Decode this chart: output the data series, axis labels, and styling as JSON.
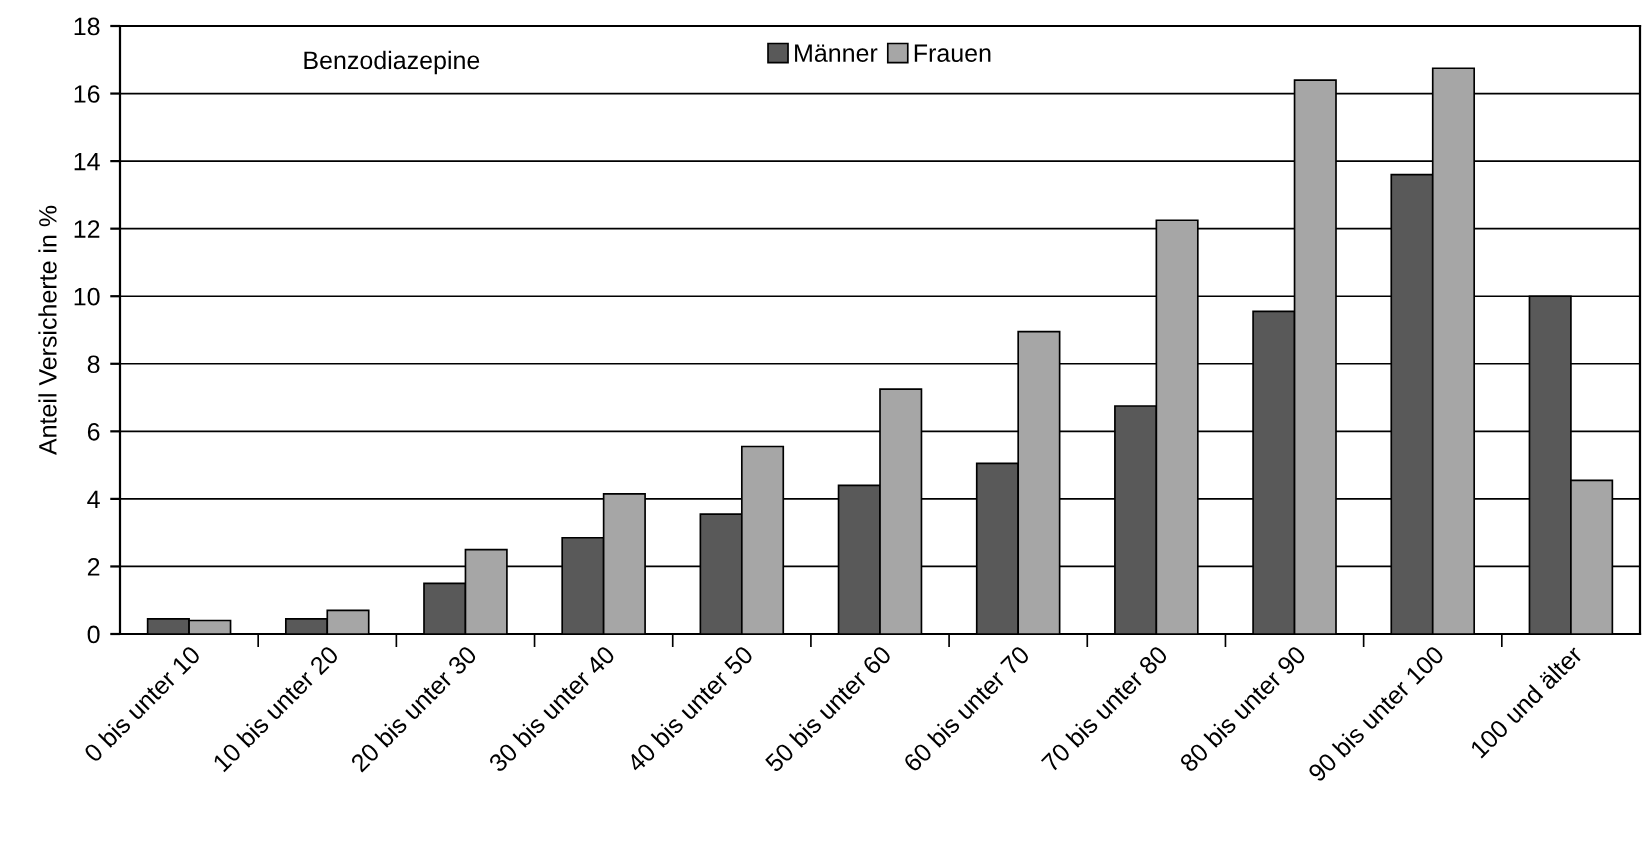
{
  "chart_data": {
    "type": "bar",
    "title": "Benzodiazepine",
    "ylabel": "Anteil Versicherte in %",
    "categories": [
      "0 bis unter 10",
      "10 bis unter 20",
      "20 bis unter 30",
      "30 bis unter 40",
      "40 bis unter 50",
      "50 bis unter 60",
      "60 bis unter 70",
      "70 bis unter 80",
      "80 bis unter 90",
      "90 bis unter 100",
      "100 und älter"
    ],
    "series": [
      {
        "name": "Männer",
        "color": "#595959",
        "values": [
          0.45,
          0.45,
          1.5,
          2.85,
          3.55,
          4.4,
          5.05,
          6.75,
          9.55,
          13.6,
          10.0
        ]
      },
      {
        "name": "Frauen",
        "color": "#a6a6a6",
        "values": [
          0.4,
          0.7,
          2.5,
          4.15,
          5.55,
          7.25,
          8.95,
          12.25,
          16.4,
          16.75,
          4.55
        ]
      }
    ],
    "ylim": [
      0,
      18
    ],
    "yticks": [
      0,
      2,
      4,
      6,
      8,
      10,
      12,
      14,
      16,
      18
    ],
    "grid": "y",
    "legend": "top"
  }
}
